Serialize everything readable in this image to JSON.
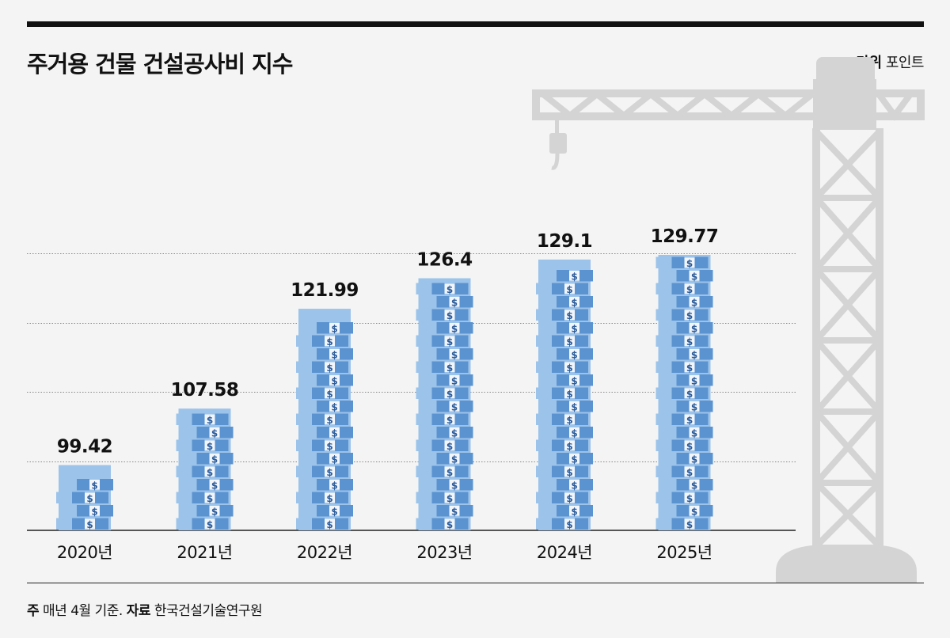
{
  "header": {
    "title": "주거용 건물 건설공사비 지수",
    "unit_key": "단위",
    "unit_value": "포인트"
  },
  "footer": {
    "note_key": "주",
    "note_text": "매년 4월 기준.",
    "source_key": "자료",
    "source_text": "한국건설기술연구원"
  },
  "colors": {
    "bill_light": "#9cc3ea",
    "bill_dark": "#5b93d0",
    "band": "#f2f6fb",
    "dollar": "#2a5b9a",
    "crane": "#d4d4d4",
    "gridline": "#888888"
  },
  "icons": [
    "money-stack-icon",
    "dollar-icon",
    "crane-illustration"
  ],
  "chart_data": {
    "type": "bar",
    "categories": [
      "2020년",
      "2021년",
      "2022년",
      "2023년",
      "2024년",
      "2025년"
    ],
    "values": [
      99.42,
      107.58,
      121.99,
      126.4,
      129.1,
      129.77
    ],
    "title": "주거용 건물 건설공사비 지수",
    "xlabel": "",
    "ylabel": "",
    "ylim": [
      90,
      130
    ],
    "grid": true
  }
}
